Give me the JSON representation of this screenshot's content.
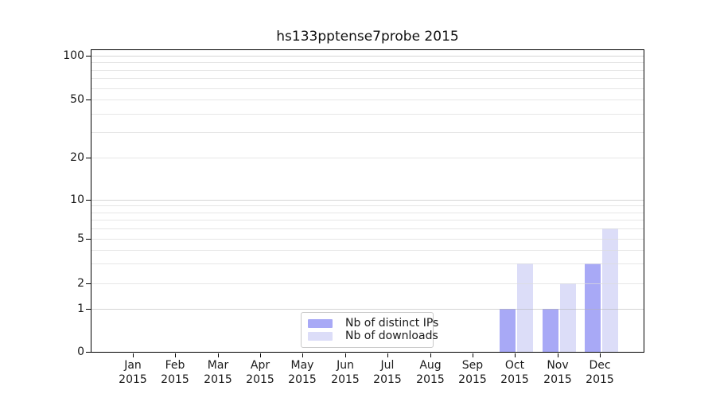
{
  "title": "hs133pptense7probe 2015",
  "chart_data": {
    "type": "bar",
    "title": "hs133pptense7probe 2015",
    "year_label": "2015",
    "categories": [
      "Jan",
      "Feb",
      "Mar",
      "Apr",
      "May",
      "Jun",
      "Jul",
      "Aug",
      "Sep",
      "Oct",
      "Nov",
      "Dec"
    ],
    "series": [
      {
        "name": "Nb of distinct IPs",
        "color": "#a8a9f6",
        "values": [
          0,
          0,
          0,
          0,
          0,
          0,
          0,
          0,
          0,
          1,
          1,
          3
        ]
      },
      {
        "name": "Nb of downloads",
        "color": "#dcddf8",
        "values": [
          0,
          0,
          0,
          0,
          0,
          0,
          0,
          0,
          0,
          3,
          2,
          6
        ]
      }
    ],
    "ylabel": "",
    "xlabel": "",
    "yscale": "log-like",
    "ytick_labels": [
      "100",
      "50",
      "20",
      "10",
      "5",
      "2",
      "1",
      "0"
    ],
    "ytick_values": [
      100,
      50,
      20,
      10,
      5,
      2,
      1,
      0
    ],
    "minor_grid_values": [
      3,
      4,
      6,
      7,
      8,
      9,
      30,
      40,
      60,
      70,
      80,
      90
    ],
    "light_major_grid_values": [
      2,
      5,
      20,
      50
    ],
    "strong_grid_values": [
      1,
      10,
      100
    ],
    "ylim": [
      0,
      115
    ],
    "grid": true,
    "legend_position": "bottom-center",
    "frame": true
  }
}
